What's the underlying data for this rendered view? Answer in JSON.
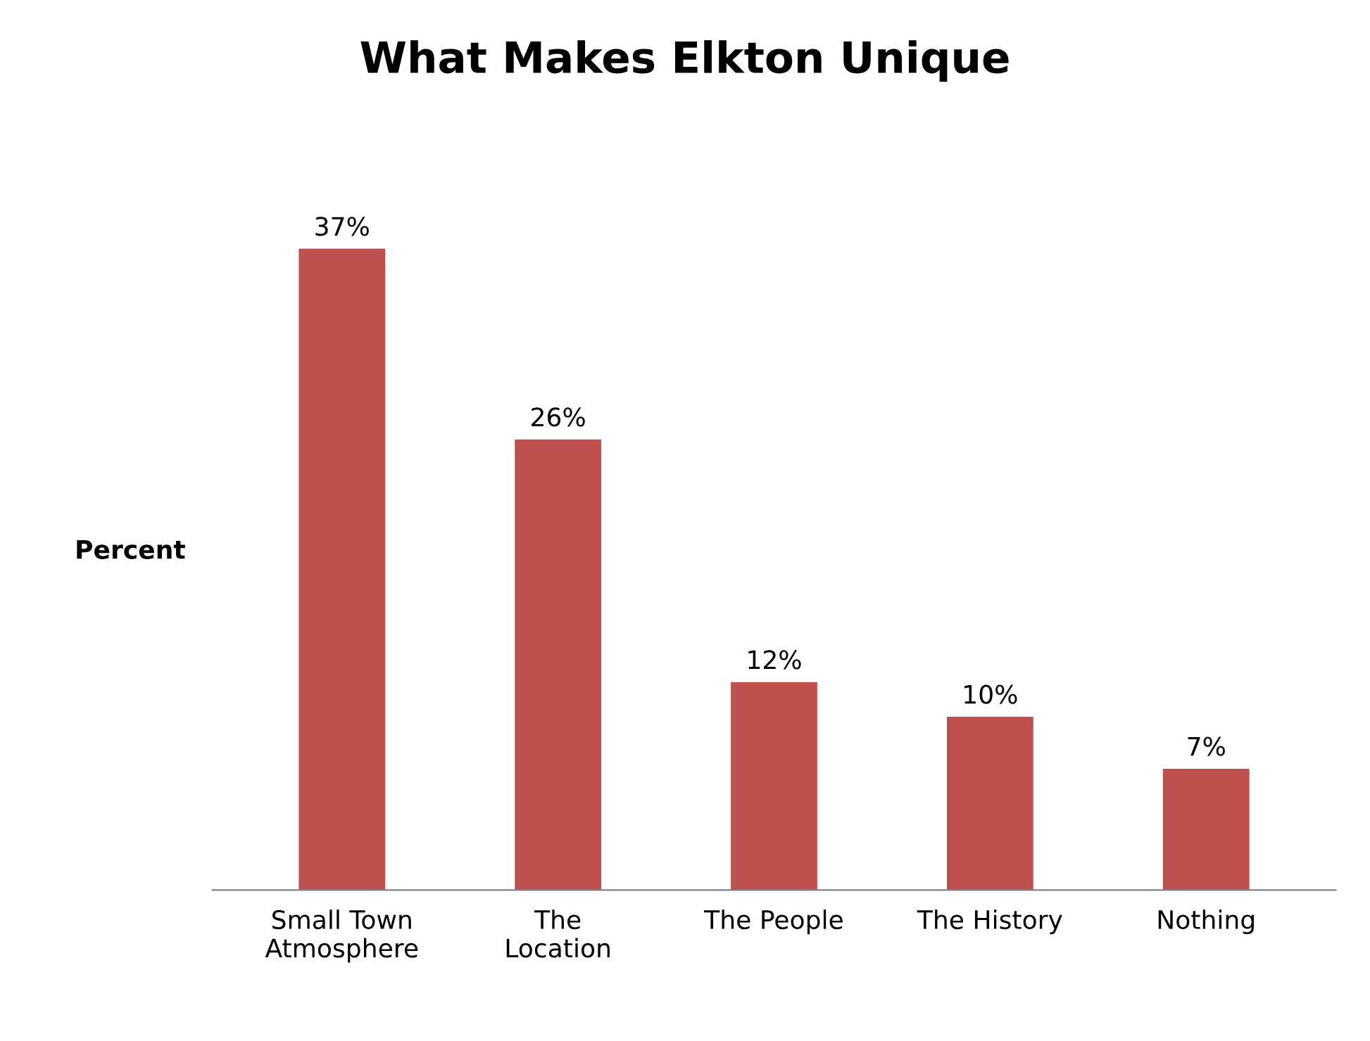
{
  "chart_data": {
    "type": "bar",
    "title": "What Makes Elkton Unique",
    "ylabel": "Percent",
    "categories": [
      "Small Town\nAtmosphere",
      "The\nLocation",
      "The People",
      "The History",
      "Nothing"
    ],
    "values": [
      37,
      26,
      12,
      10,
      7
    ],
    "color": "#c0504d",
    "data_labels": true,
    "value_labels": [
      "37%",
      "26%",
      "12%",
      "10%",
      "7%"
    ]
  }
}
